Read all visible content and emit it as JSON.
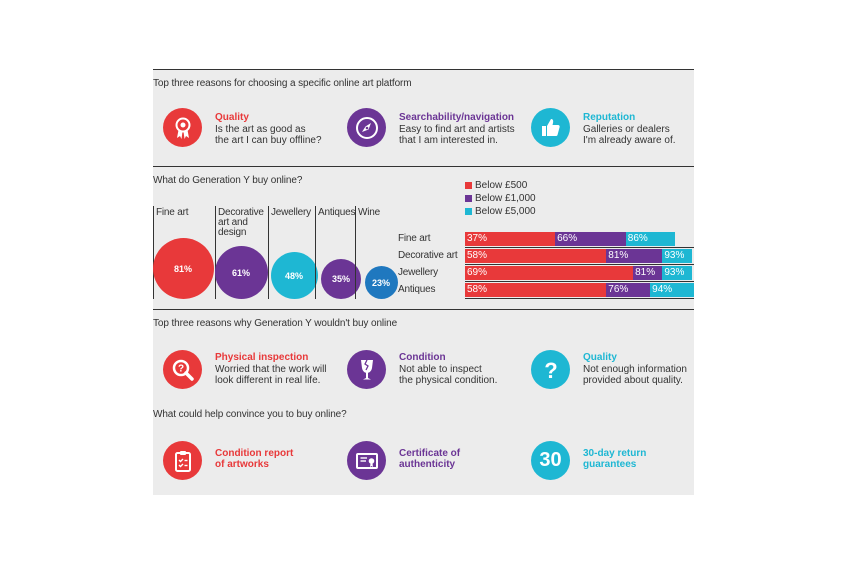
{
  "colors": {
    "red": "#e8393a",
    "purple": "#6b3595",
    "cyan": "#1eb7d3",
    "panel": "#ececec"
  },
  "section1": {
    "heading": "Top three reasons for choosing a specific online art platform",
    "items": [
      {
        "icon": "rosette-icon",
        "title": "Quality",
        "line1": "Is the art as good as",
        "line2": "the art I can buy offline?"
      },
      {
        "icon": "compass-icon",
        "title": "Searchability/navigation",
        "line1": "Easy to find art and artists",
        "line2": "that I am interested in."
      },
      {
        "icon": "thumbs-up-icon",
        "title": "Reputation",
        "line1": "Galleries or dealers",
        "line2": "I'm already aware of."
      }
    ]
  },
  "section2": {
    "heading": "What do Generation Y buy online?",
    "categories": [
      {
        "line1": "Fine art",
        "line2": "",
        "line3": ""
      },
      {
        "line1": "Decorative",
        "line2": "art and",
        "line3": "design"
      },
      {
        "line1": "Jewellery",
        "line2": "",
        "line3": ""
      },
      {
        "line1": "Antiques",
        "line2": "",
        "line3": ""
      },
      {
        "line1": "Wine",
        "line2": "",
        "line3": ""
      }
    ],
    "legend": [
      "Below £500",
      "Below £1,000",
      "Below £5,000"
    ]
  },
  "chart_data": [
    {
      "type": "bubble",
      "categories": [
        "Fine art",
        "Decorative art and design",
        "Jewellery",
        "Antiques",
        "Wine"
      ],
      "values": [
        81,
        61,
        48,
        35,
        23
      ],
      "labels": [
        "81%",
        "61%",
        "48%",
        "35%",
        "23%"
      ]
    },
    {
      "type": "bar",
      "orientation": "horizontal",
      "stacked": true,
      "categories": [
        "Fine art",
        "Decorative art",
        "Jewellery",
        "Antiques"
      ],
      "series": [
        {
          "name": "Below £500",
          "values": [
            37,
            58,
            69,
            58
          ],
          "labels": [
            "37%",
            "58%",
            "69%",
            "58%"
          ]
        },
        {
          "name": "Below £1,000",
          "values": [
            66,
            81,
            81,
            76
          ],
          "labels": [
            "66%",
            "81%",
            "81%",
            "76%"
          ]
        },
        {
          "name": "Below £5,000",
          "values": [
            86,
            93,
            93,
            94
          ],
          "labels": [
            "86%",
            "93%",
            "93%",
            "94%"
          ]
        }
      ],
      "legend": "top"
    }
  ],
  "section3": {
    "heading": "Top three reasons why Generation Y wouldn't buy online",
    "items": [
      {
        "icon": "magnifier-question-icon",
        "title": "Physical inspection",
        "line1": "Worried that the work will",
        "line2": "look different in real life."
      },
      {
        "icon": "broken-glass-icon",
        "title": "Condition",
        "line1": "Not able to inspect",
        "line2": "the physical condition."
      },
      {
        "icon": "question-mark-icon",
        "title": "Quality",
        "line1": "Not enough information",
        "line2": "provided about quality."
      }
    ]
  },
  "section4": {
    "heading": "What could help convince you to buy online?",
    "items": [
      {
        "icon": "clipboard-checklist-icon",
        "line1": "Condition report",
        "line2": "of artworks"
      },
      {
        "icon": "certificate-icon",
        "line1": "Certificate of",
        "line2": "authenticity"
      },
      {
        "icon": "thirty-day-icon",
        "badge": "30",
        "line1": "30-day return",
        "line2": "guarantees"
      }
    ]
  }
}
